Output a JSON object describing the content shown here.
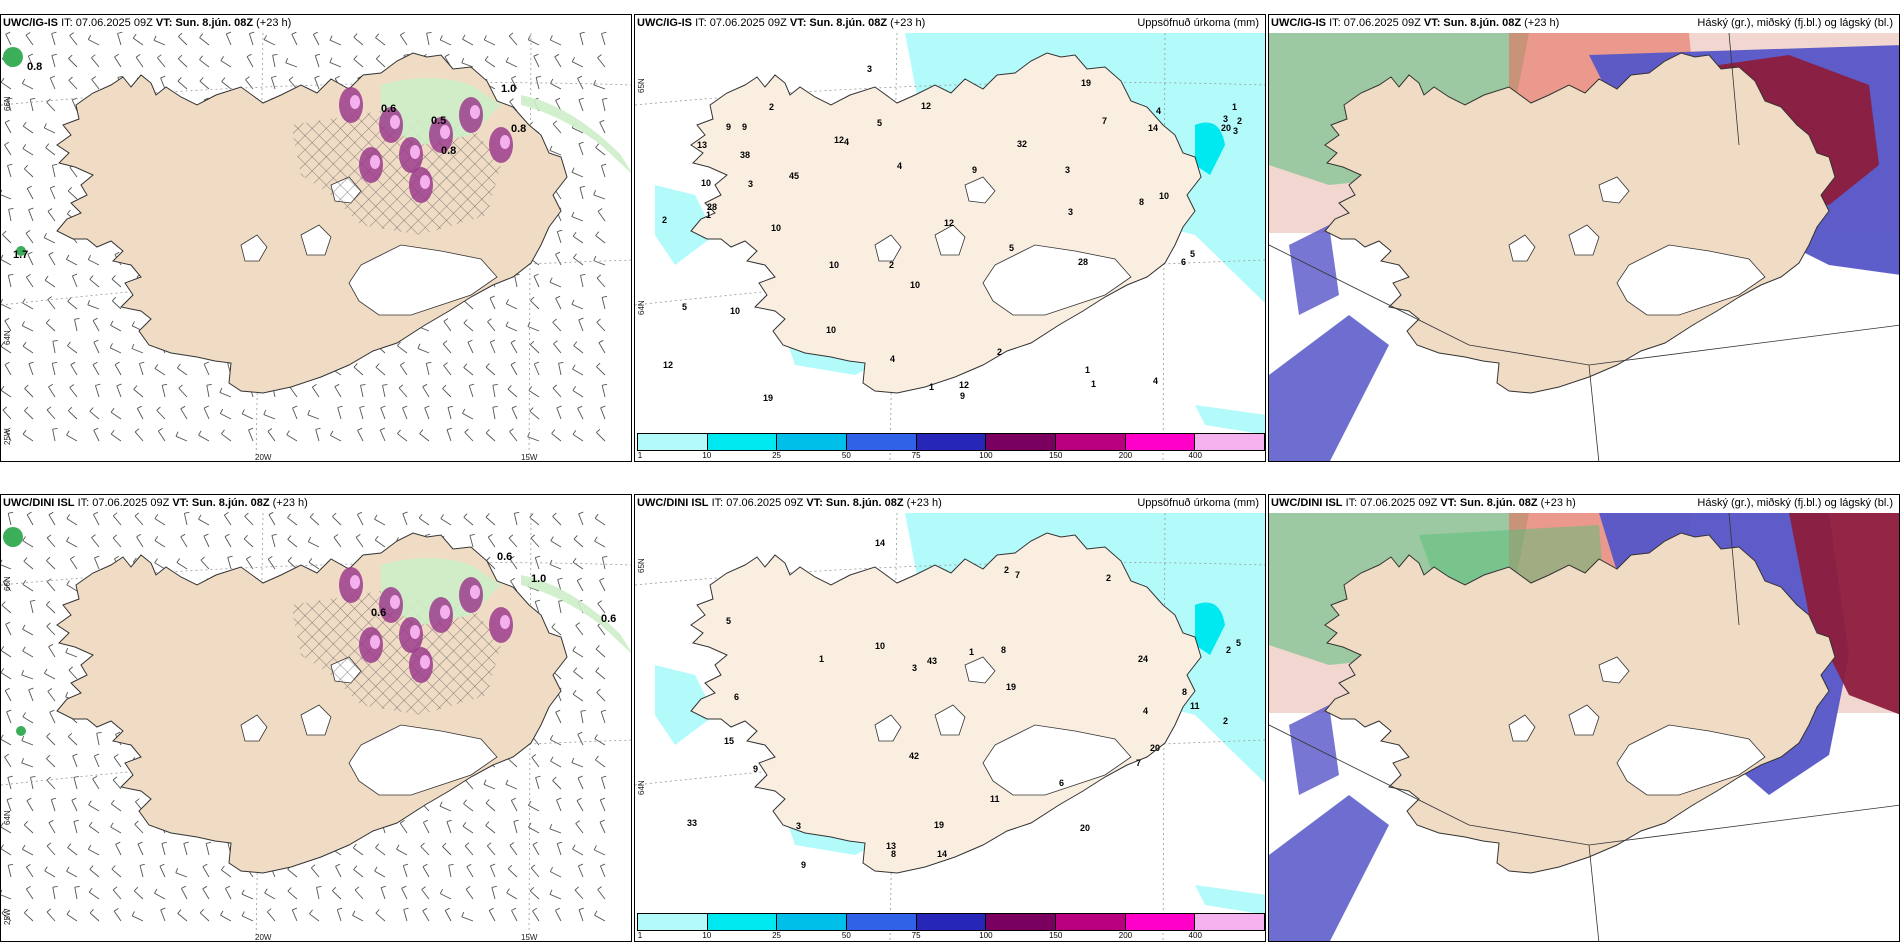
{
  "panels": [
    {
      "id": "r0c0",
      "model": "UWC/IG-IS",
      "it": "IT: 07.06.2025 09Z",
      "vt": "VT: Sun. 8.jún. 08Z",
      "lead": "(+23 h)",
      "desc": "",
      "type": "wind"
    },
    {
      "id": "r0c1",
      "model": "UWC/IG-IS",
      "it": "IT: 07.06.2025 09Z",
      "vt": "VT: Sun. 8.jún. 08Z",
      "lead": "(+23 h)",
      "desc": "Uppsöfnuð úrkoma (mm)",
      "type": "precip"
    },
    {
      "id": "r0c2",
      "model": "UWC/IG-IS",
      "it": "IT: 07.06.2025 09Z",
      "vt": "VT: Sun. 8.jún. 08Z",
      "lead": "(+23 h)",
      "desc": "Háský (gr.), miðský (fj.bl.) og lágský (bl.)",
      "type": "cloud"
    },
    {
      "id": "r1c0",
      "model": "UWC/DINI ISL",
      "it": "IT: 07.06.2025 09Z",
      "vt": "VT: Sun. 8.jún. 08Z",
      "lead": "(+23 h)",
      "desc": "",
      "type": "wind"
    },
    {
      "id": "r1c1",
      "model": "UWC/DINI ISL",
      "it": "IT: 07.06.2025 09Z",
      "vt": "VT: Sun. 8.jún. 08Z",
      "lead": "(+23 h)",
      "desc": "Uppsöfnuð úrkoma (mm)",
      "type": "precip"
    },
    {
      "id": "r1c2",
      "model": "UWC/DINI ISL",
      "it": "IT: 07.06.2025 09Z",
      "vt": "VT: Sun. 8.jún. 08Z",
      "lead": "(+23 h)",
      "desc": "Háský (gr.), miðský (fj.bl.) og lágský (bl.)",
      "type": "cloud"
    }
  ],
  "axis_labels": {
    "lat_top": "66N",
    "lat_bottom": "64N",
    "lat_corner": "25W",
    "lon_left": "20W",
    "lon_right": "15W",
    "lat_right": "65N",
    "lat_right2": "64N"
  },
  "colorbar": {
    "ticks": [
      "1",
      "10",
      "25",
      "50",
      "75",
      "100",
      "150",
      "200",
      "400"
    ],
    "colors": [
      "#b3fbfb",
      "#00e8f0",
      "#00bfe8",
      "#2f62e6",
      "#2626b8",
      "#7a0060",
      "#b8007f",
      "#ff00c8",
      "#f5b0ee"
    ]
  },
  "wind_labels": {
    "top": [
      "0.8",
      "1.7",
      "0.8",
      "0.6",
      "0.5",
      "1.0",
      "0.8"
    ],
    "bottom": [
      "0.6",
      "1.0",
      "0.6",
      "0.6"
    ]
  },
  "precip_labels": {
    "top": [
      "9",
      "1",
      "12",
      "12",
      "28",
      "45",
      "32",
      "19",
      "10",
      "9",
      "10",
      "20",
      "12",
      "28",
      "38",
      "10",
      "2",
      "4",
      "3",
      "4",
      "8",
      "12",
      "5",
      "1",
      "2",
      "9",
      "10",
      "3",
      "4",
      "5",
      "13",
      "2",
      "1",
      "1",
      "3",
      "4",
      "9",
      "6",
      "10",
      "7",
      "3",
      "2",
      "10",
      "19",
      "12",
      "14",
      "10",
      "5",
      "3",
      "1",
      "3",
      "2",
      "4",
      "5"
    ],
    "bottom": [
      "5",
      "2",
      "10",
      "19",
      "43",
      "33",
      "19",
      "20",
      "13",
      "24",
      "42",
      "20",
      "14",
      "11",
      "14",
      "11",
      "8",
      "6",
      "3",
      "7",
      "5",
      "8",
      "2",
      "7",
      "6",
      "9",
      "8",
      "2",
      "15",
      "9",
      "3",
      "1",
      "2",
      "1",
      "4"
    ]
  },
  "colors": {
    "land": "#f0dcc5",
    "land_light": "#faeee1",
    "ocean": "#ffffff",
    "precip_light": "#b3fbfb",
    "cyan": "#00e8f0",
    "green_light": "#cdeec8",
    "green": "#3cae5a",
    "purple": "#9b3c8c",
    "pink": "#f5b0ee",
    "blue_cloud": "#5555c8",
    "maroon_cloud": "#8c1c3c",
    "red_cloud": "#e87060",
    "green_cloud": "#55c07a"
  }
}
